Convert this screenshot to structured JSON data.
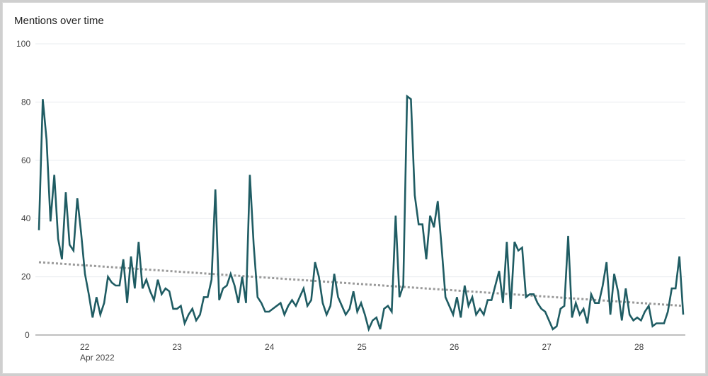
{
  "chart_data": {
    "type": "line",
    "title": "Mentions over time",
    "xlabel": "",
    "ylabel": "",
    "ylim": [
      0,
      100
    ],
    "yticks": [
      0,
      20,
      40,
      60,
      80,
      100
    ],
    "xticks": [
      "22",
      "23",
      "24",
      "25",
      "26",
      "27",
      "28"
    ],
    "xtick_sublabel": "Apr 2022",
    "grid": true,
    "legend": false,
    "colors": {
      "series": "#1f5c63",
      "trend": "#9a9a9a",
      "grid": "#e8ecef",
      "axis": "#aaaaaa"
    },
    "series": [
      {
        "name": "Mentions",
        "values": [
          36,
          81,
          67,
          39,
          55,
          33,
          26,
          49,
          31,
          29,
          47,
          35,
          21,
          14,
          6,
          13,
          7,
          11,
          20,
          18,
          17,
          17,
          26,
          11,
          27,
          16,
          32,
          16,
          19,
          15,
          12,
          19,
          14,
          16,
          15,
          9,
          9,
          10,
          4,
          7,
          9,
          5,
          7,
          13,
          13,
          19,
          50,
          12,
          16,
          17,
          21,
          17,
          11,
          20,
          11,
          55,
          31,
          13,
          11,
          8,
          8,
          9,
          10,
          11,
          7,
          10,
          12,
          10,
          13,
          16,
          10,
          12,
          25,
          20,
          11,
          7,
          10,
          21,
          13,
          10,
          7,
          9,
          15,
          8,
          11,
          7,
          2,
          5,
          6,
          2,
          9,
          10,
          8,
          41,
          13,
          17,
          82,
          81,
          48,
          38,
          38,
          26,
          41,
          37,
          46,
          30,
          13,
          10,
          7,
          13,
          6,
          17,
          10,
          13,
          7,
          9,
          7,
          12,
          12,
          17,
          22,
          11,
          32,
          9,
          32,
          29,
          30,
          13,
          14,
          14,
          11,
          9,
          8,
          5,
          2,
          3,
          9,
          10,
          34,
          6,
          11,
          7,
          9,
          4,
          14,
          11,
          11,
          17,
          25,
          7,
          21,
          15,
          5,
          16,
          7,
          5,
          6,
          5,
          8,
          10,
          3,
          4,
          4,
          4,
          8,
          16,
          16,
          27,
          7
        ]
      },
      {
        "name": "Trend",
        "style": "dotted",
        "values": [
          25,
          10
        ]
      }
    ]
  }
}
